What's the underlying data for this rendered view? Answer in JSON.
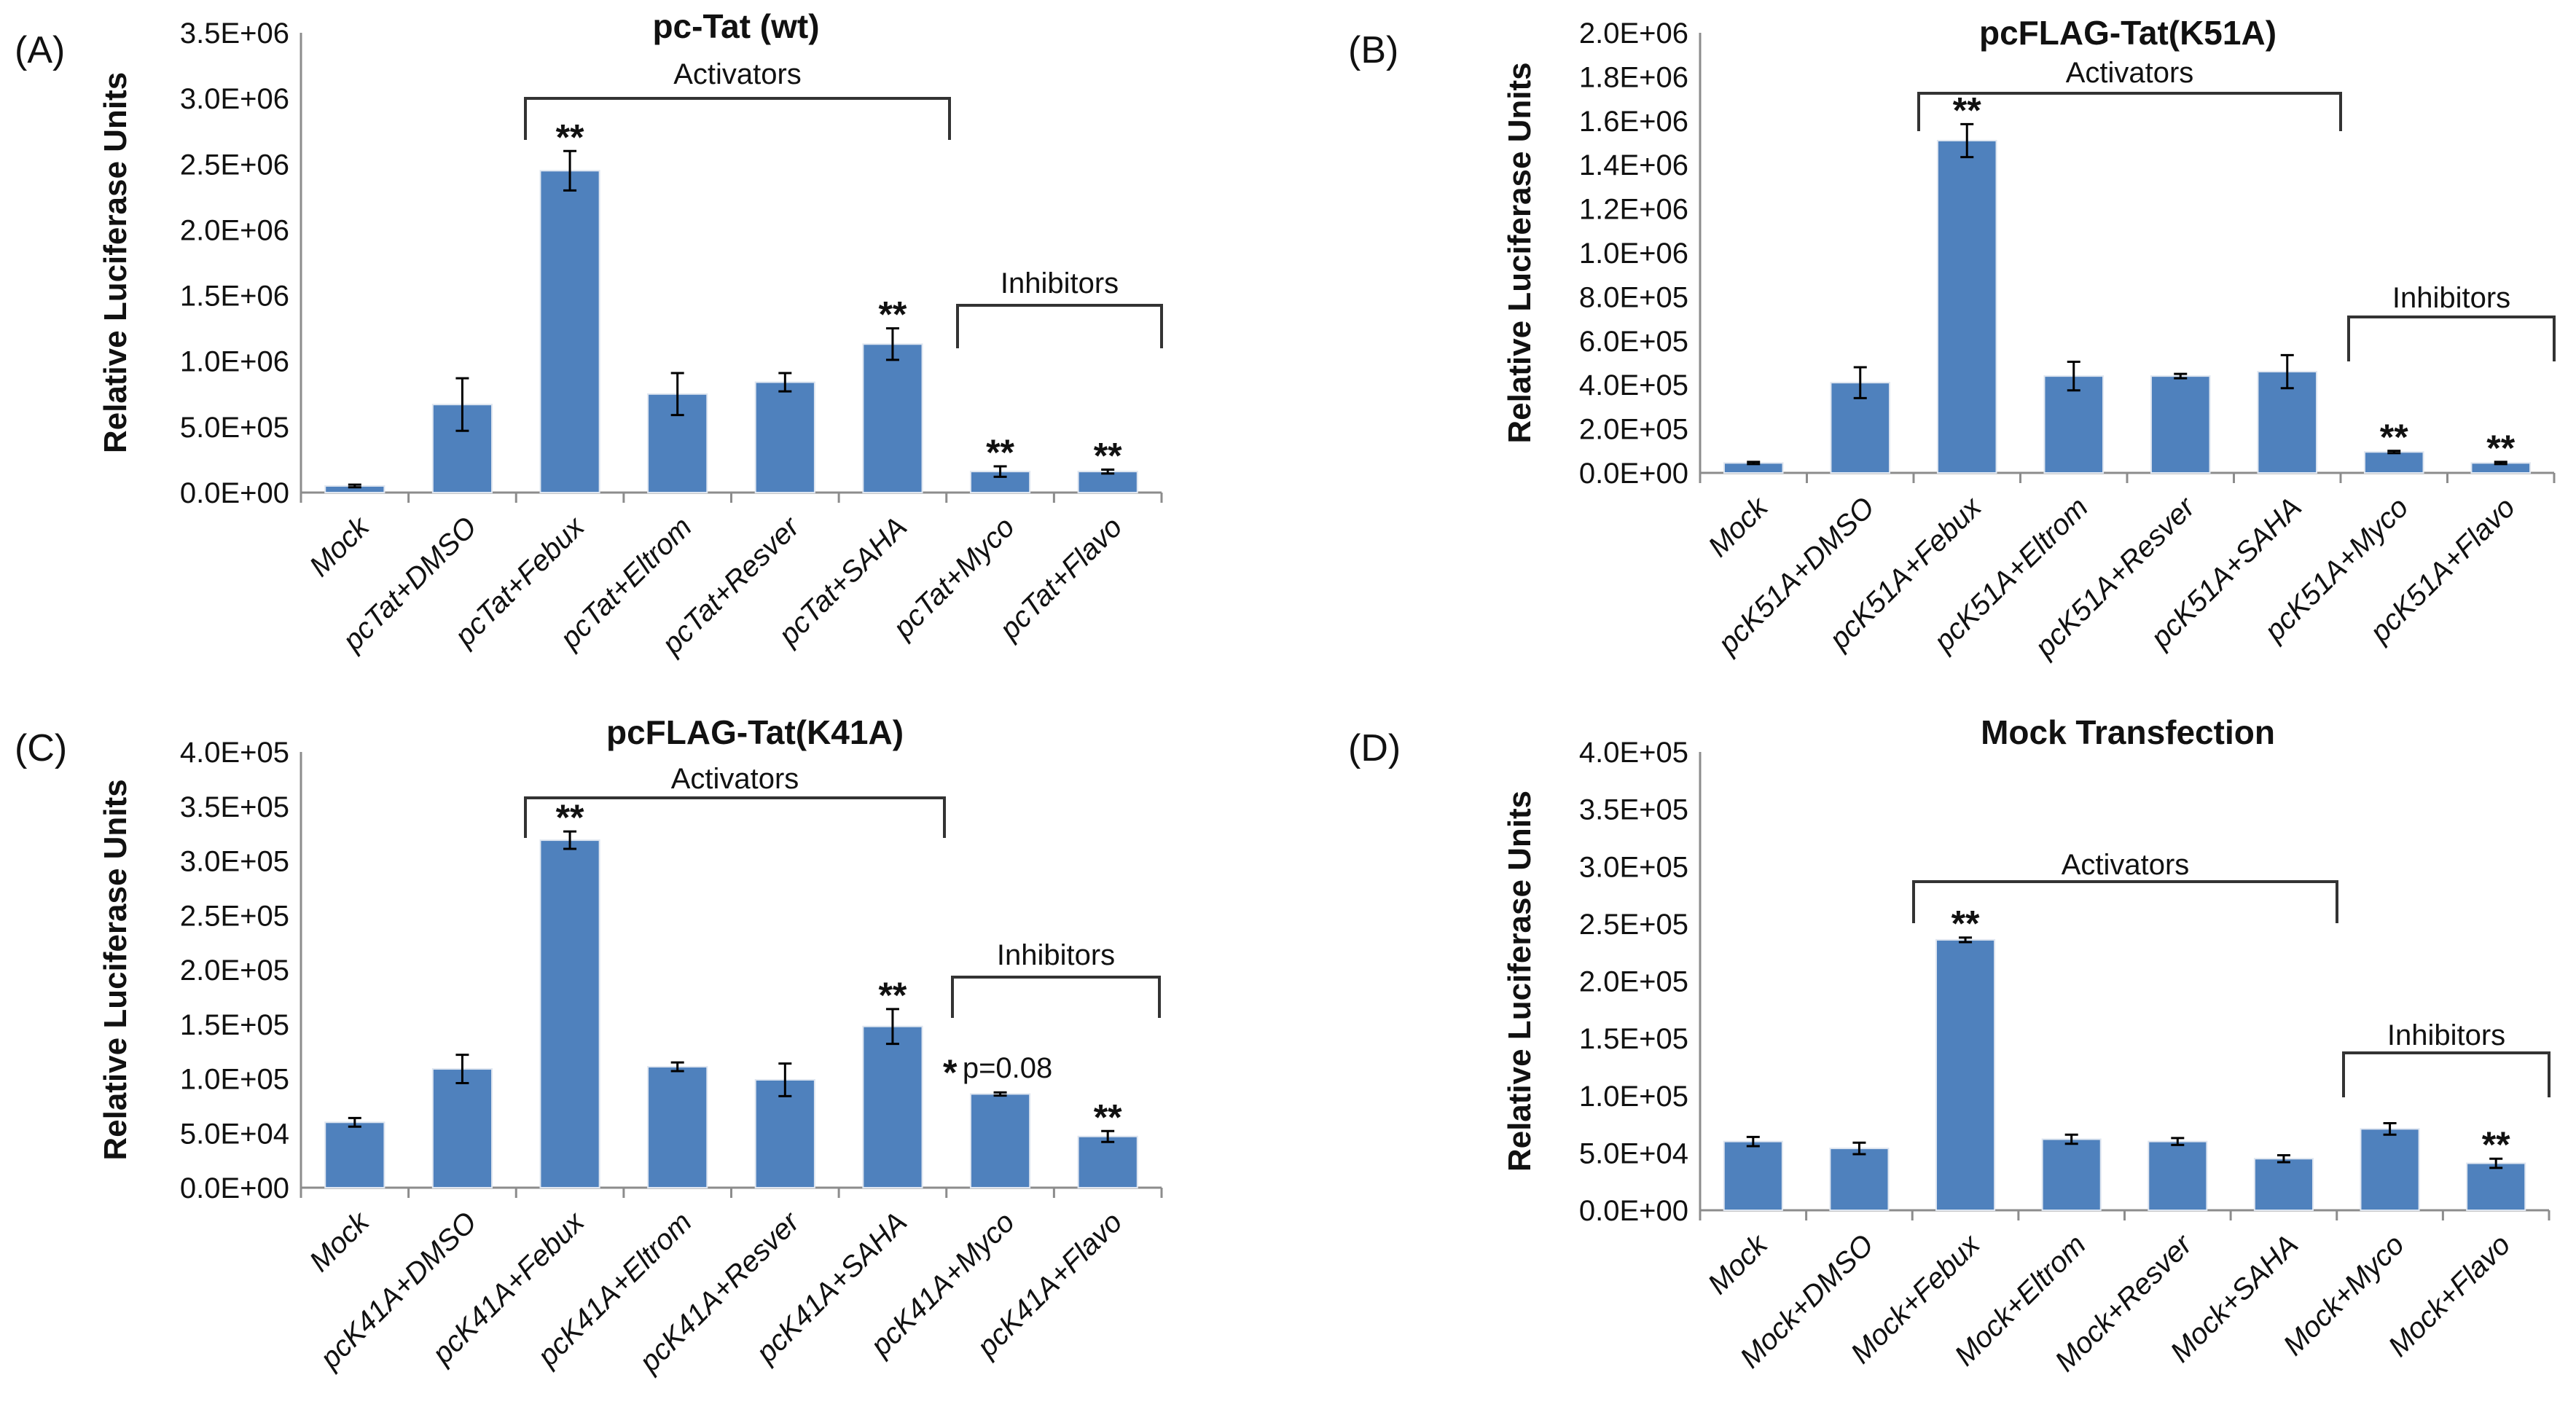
{
  "chart_data": [
    {
      "type": "bar",
      "panel_letter": "(A)",
      "title": "pc-Tat (wt)",
      "ylabel": "Relative Luciferase Units",
      "ylim": [
        0,
        3500000
      ],
      "yticks": [
        0,
        500000,
        1000000,
        1500000,
        2000000,
        2500000,
        3000000,
        3500000
      ],
      "ytick_labels": [
        "0.0E+00",
        "5.0E+05",
        "1.0E+06",
        "1.5E+06",
        "2.0E+06",
        "2.5E+06",
        "3.0E+06",
        "3.5E+06"
      ],
      "categories": [
        "Mock",
        "pcTat+DMSO",
        "pcTat+Febux",
        "pcTat+Eltrom",
        "pcTat+Resver",
        "pcTat+SAHA",
        "pcTat+Myco",
        "pcTat+Flavo"
      ],
      "values": [
        50000,
        670000,
        2450000,
        750000,
        840000,
        1130000,
        160000,
        160000
      ],
      "errors": [
        10000,
        200000,
        150000,
        160000,
        70000,
        120000,
        40000,
        15000
      ],
      "significance": [
        "",
        "",
        "**",
        "",
        "",
        "**",
        "**",
        "**"
      ],
      "groups": [
        {
          "label": "Activators",
          "from": 2,
          "to": 5
        },
        {
          "label": "Inhibitors",
          "from": 6,
          "to": 7
        }
      ],
      "color": "#4f81bd"
    },
    {
      "type": "bar",
      "panel_letter": "(B)",
      "title": "pcFLAG-Tat(K51A)",
      "ylabel": "Relative Luciferase Units",
      "ylim": [
        0,
        2000000
      ],
      "yticks": [
        0,
        200000,
        400000,
        600000,
        800000,
        1000000,
        1200000,
        1400000,
        1600000,
        1800000,
        2000000
      ],
      "ytick_labels": [
        "0.0E+00",
        "2.0E+05",
        "4.0E+05",
        "6.0E+05",
        "8.0E+05",
        "1.0E+06",
        "1.2E+06",
        "1.4E+06",
        "1.6E+06",
        "1.8E+06",
        "2.0E+06"
      ],
      "categories": [
        "Mock",
        "pcK51A+DMSO",
        "pcK51A+Febux",
        "pcK51A+Eltrom",
        "pcK51A+Resver",
        "pcK51A+SAHA",
        "pcK51A+Myco",
        "pcK51A+Flavo"
      ],
      "values": [
        45000,
        410000,
        1510000,
        440000,
        440000,
        460000,
        95000,
        45000
      ],
      "errors": [
        5000,
        70000,
        75000,
        65000,
        10000,
        75000,
        5000,
        5000
      ],
      "significance": [
        "",
        "",
        "**",
        "",
        "",
        "",
        "**",
        "**"
      ],
      "groups": [
        {
          "label": "Activators",
          "from": 2,
          "to": 5
        },
        {
          "label": "Inhibitors",
          "from": 6,
          "to": 7
        }
      ],
      "color": "#4f81bd"
    },
    {
      "type": "bar",
      "panel_letter": "(C)",
      "title": "pcFLAG-Tat(K41A)",
      "ylabel": "Relative Luciferase Units",
      "ylim": [
        0,
        400000
      ],
      "yticks": [
        0,
        50000,
        100000,
        150000,
        200000,
        250000,
        300000,
        350000,
        400000
      ],
      "ytick_labels": [
        "0.0E+00",
        "5.0E+04",
        "1.0E+05",
        "1.5E+05",
        "2.0E+05",
        "2.5E+05",
        "3.0E+05",
        "3.5E+05",
        "4.0E+05"
      ],
      "categories": [
        "Mock",
        "pcK41A+DMSO",
        "pcK41A+Febux",
        "pcK41A+Eltrom",
        "pcK41A+Resver",
        "pcK41A+SAHA",
        "pcK41A+Myco",
        "pcK41A+Flavo"
      ],
      "values": [
        60000,
        109000,
        319000,
        111000,
        99000,
        148000,
        86000,
        47000
      ],
      "errors": [
        4000,
        13000,
        8000,
        4000,
        15000,
        16000,
        1500,
        5000
      ],
      "significance": [
        "",
        "",
        "**",
        "",
        "",
        "**",
        "*",
        "**"
      ],
      "annotation": {
        "text": "p=0.08",
        "category": 6
      },
      "groups": [
        {
          "label": "Activators",
          "from": 2,
          "to": 5
        },
        {
          "label": "Inhibitors",
          "from": 6,
          "to": 7
        }
      ],
      "color": "#4f81bd"
    },
    {
      "type": "bar",
      "panel_letter": "(D)",
      "title": "Mock Transfection",
      "ylabel": "Relative Luciferase Units",
      "ylim": [
        0,
        400000
      ],
      "yticks": [
        0,
        50000,
        100000,
        150000,
        200000,
        250000,
        300000,
        350000,
        400000
      ],
      "ytick_labels": [
        "0.0E+00",
        "5.0E+04",
        "1.0E+05",
        "1.5E+05",
        "2.0E+05",
        "2.5E+05",
        "3.0E+05",
        "3.5E+05",
        "4.0E+05"
      ],
      "categories": [
        "Mock",
        "Mock+DMSO",
        "Mock+Febux",
        "Mock+Eltrom",
        "Mock+Resver",
        "Mock+SAHA",
        "Mock+Myco",
        "Mock+Flavo"
      ],
      "values": [
        60000,
        54000,
        236000,
        62000,
        60000,
        45000,
        71000,
        41000
      ],
      "errors": [
        4000,
        5000,
        2000,
        4000,
        3000,
        3000,
        5000,
        4000
      ],
      "significance": [
        "",
        "",
        "**",
        "",
        "",
        "",
        "",
        "**"
      ],
      "groups": [
        {
          "label": "Activators",
          "from": 2,
          "to": 5
        },
        {
          "label": "Inhibitors",
          "from": 6,
          "to": 7
        }
      ],
      "color": "#4f81bd"
    }
  ]
}
